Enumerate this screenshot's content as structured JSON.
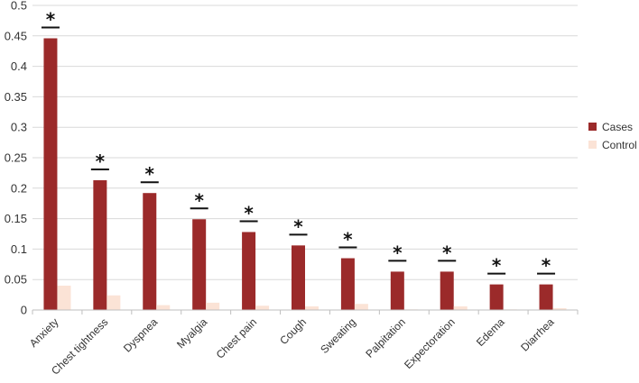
{
  "chart_data": {
    "type": "bar",
    "title": "",
    "xlabel": "",
    "ylabel": "",
    "ylim": [
      0,
      0.5
    ],
    "yticks": [
      "0",
      "0.05",
      "0.1",
      "0.15",
      "0.2",
      "0.25",
      "0.3",
      "0.35",
      "0.4",
      "0.45",
      "0.5"
    ],
    "grid": true,
    "legend_position": "right",
    "categories": [
      "Anxiety",
      "Chest tightness",
      "Dyspnea",
      "Myalgia",
      "Chest pain",
      "Cough",
      "Sweating",
      "Palpitation",
      "Expectoration",
      "Edema",
      "Diarrhea"
    ],
    "series": [
      {
        "name": "Cases",
        "color": "#9b2a2a",
        "values": [
          0.446,
          0.213,
          0.192,
          0.149,
          0.128,
          0.106,
          0.085,
          0.063,
          0.063,
          0.042,
          0.042
        ]
      },
      {
        "name": "Control",
        "color": "#fbe3d6",
        "values": [
          0.04,
          0.024,
          0.008,
          0.012,
          0.007,
          0.006,
          0.01,
          0.001,
          0.006,
          0.001,
          0.003
        ]
      }
    ],
    "significance_marker": "*"
  }
}
